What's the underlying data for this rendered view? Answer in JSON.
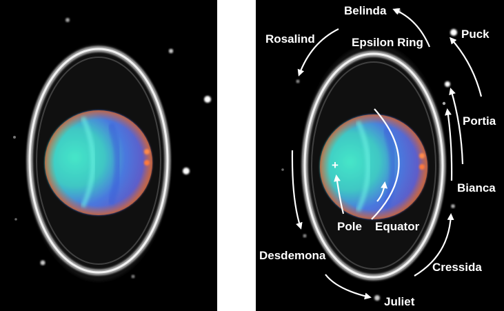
{
  "labels": {
    "belinda": "Belinda",
    "puck": "Puck",
    "rosalind": "Rosalind",
    "epsilon_ring": "Epsilon Ring",
    "portia": "Portia",
    "bianca": "Bianca",
    "cressida": "Cressida",
    "desdemona": "Desdemona",
    "juliet": "Juliet",
    "pole": "Pole",
    "equator": "Equator"
  },
  "pole_marker": "+",
  "colors": {
    "background": "#000000",
    "frame": "#ffffff",
    "annotation": "#ffffff",
    "ring": "#d8d8d8",
    "planet_cyan": "#3fe0c4",
    "planet_blue": "#4f6fe0",
    "planet_orange": "#d9623a"
  }
}
